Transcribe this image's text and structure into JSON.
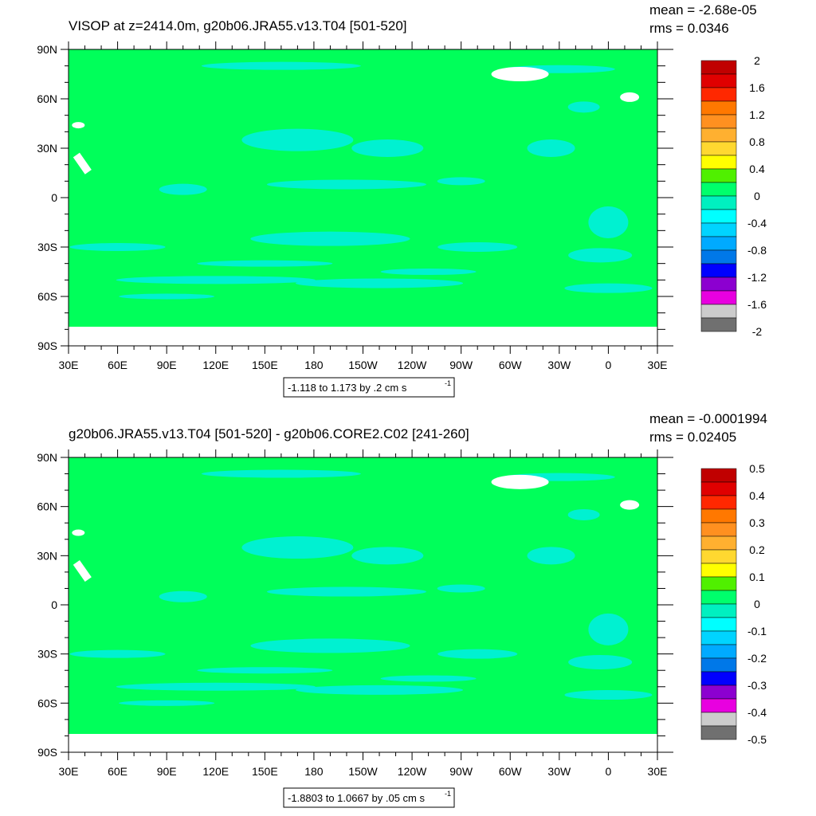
{
  "colors": {
    "land": "#00ff5a",
    "ocean_light": "#00f0d8",
    "ice": "#ffffff",
    "frame": "#000000",
    "colorbar": [
      "#707070",
      "#cccccc",
      "#e800e0",
      "#8c00d0",
      "#0000ff",
      "#0078e8",
      "#00aaff",
      "#00d4ff",
      "#00ffff",
      "#00f0c0",
      "#00ff6c",
      "#50f000",
      "#ffff00",
      "#ffd830",
      "#ffb030",
      "#ff9020",
      "#ff7800",
      "#ff2800",
      "#e00000",
      "#c00000"
    ]
  },
  "chart_data": [
    {
      "type": "heatmap",
      "title": "VISOP at z=2414.0m, g20b06.JRA55.v13.T04 [501-520]",
      "stats": {
        "mean_label": "mean = -2.68e-05",
        "rms_label": "rms = 0.0346",
        "mean": -2.68e-05,
        "rms": 0.0346
      },
      "xticks": [
        "30E",
        "60E",
        "90E",
        "120E",
        "150E",
        "180",
        "150W",
        "120W",
        "90W",
        "60W",
        "30W",
        "0",
        "30E"
      ],
      "yticks": [
        "90N",
        "60N",
        "30N",
        "0",
        "30S",
        "60S",
        "90S"
      ],
      "xlim": [
        30,
        390
      ],
      "ylim": [
        -90,
        90
      ],
      "colorbar": {
        "levels": [
          -2,
          -1.8,
          -1.6,
          -1.4,
          -1.2,
          -1,
          -0.8,
          -0.6,
          -0.4,
          -0.2,
          0,
          0.2,
          0.4,
          0.6,
          0.8,
          1,
          1.2,
          1.4,
          1.6,
          1.8,
          2
        ],
        "labels": [
          "2",
          "1.6",
          "1.2",
          "0.8",
          "0.4",
          "0",
          "-0.4",
          "-0.8",
          "-1.2",
          "-1.6",
          "-2"
        ]
      },
      "range_label": "-1.118 to 1.173 by .2 cm s",
      "range_exponent": "-1",
      "min": -1.118,
      "max": 1.173,
      "interval": 0.2
    },
    {
      "type": "heatmap",
      "title": "g20b06.JRA55.v13.T04 [501-520] - g20b06.CORE2.C02 [241-260]",
      "stats": {
        "mean_label": "mean = -0.0001994",
        "rms_label": "rms = 0.02405",
        "mean": -0.0001994,
        "rms": 0.02405
      },
      "xticks": [
        "30E",
        "60E",
        "90E",
        "120E",
        "150E",
        "180",
        "150W",
        "120W",
        "90W",
        "60W",
        "30W",
        "0",
        "30E"
      ],
      "yticks": [
        "90N",
        "60N",
        "30N",
        "0",
        "30S",
        "60S",
        "90S"
      ],
      "xlim": [
        30,
        390
      ],
      "ylim": [
        -90,
        90
      ],
      "colorbar": {
        "levels": [
          -0.5,
          -0.45,
          -0.4,
          -0.35,
          -0.3,
          -0.25,
          -0.2,
          -0.15,
          -0.1,
          -0.05,
          0,
          0.05,
          0.1,
          0.15,
          0.2,
          0.25,
          0.3,
          0.35,
          0.4,
          0.45,
          0.5
        ],
        "labels": [
          "0.5",
          "0.4",
          "0.3",
          "0.2",
          "0.1",
          "0",
          "-0.1",
          "-0.2",
          "-0.3",
          "-0.4",
          "-0.5"
        ]
      },
      "range_label": "-1.8803 to 1.0667 by .05 cm s",
      "range_exponent": "-1",
      "min": -1.8803,
      "max": 1.0667,
      "interval": 0.05
    }
  ]
}
